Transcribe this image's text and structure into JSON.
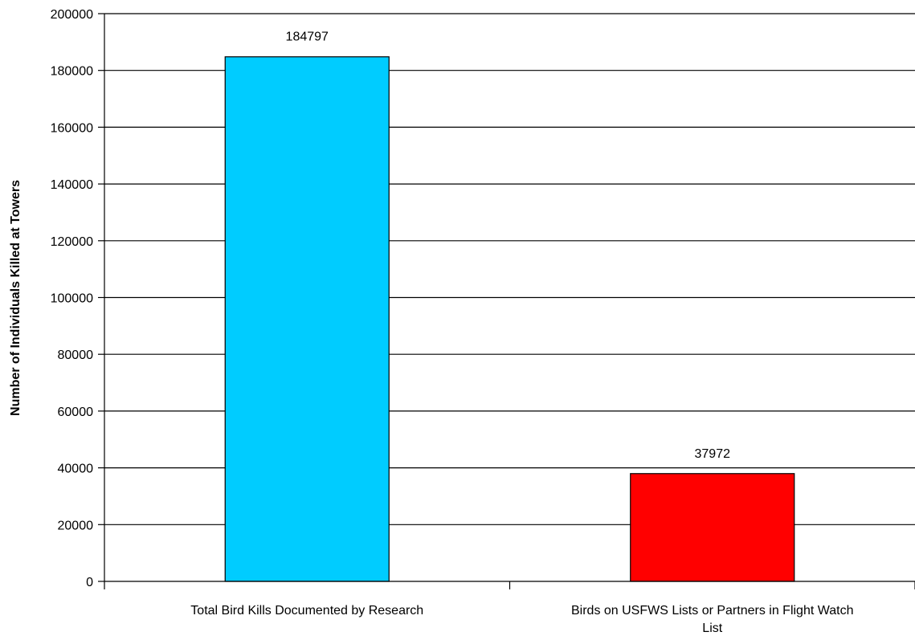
{
  "chart_data": {
    "type": "bar",
    "title": "",
    "xlabel": "",
    "ylabel": "Number of Individuals Killed at Towers",
    "ylim": [
      0,
      200000
    ],
    "yticks": [
      0,
      20000,
      40000,
      60000,
      80000,
      100000,
      120000,
      140000,
      160000,
      180000,
      200000
    ],
    "grid": true,
    "legend": "none",
    "categories": [
      [
        "Total Bird Kills Documented by Research"
      ],
      [
        "Birds on USFWS Lists or Partners in Flight Watch",
        "List"
      ]
    ],
    "values": [
      184797,
      37972
    ],
    "data_labels": [
      "184797",
      "37972"
    ],
    "colors": [
      "#00CCFF",
      "#FF0000"
    ]
  }
}
